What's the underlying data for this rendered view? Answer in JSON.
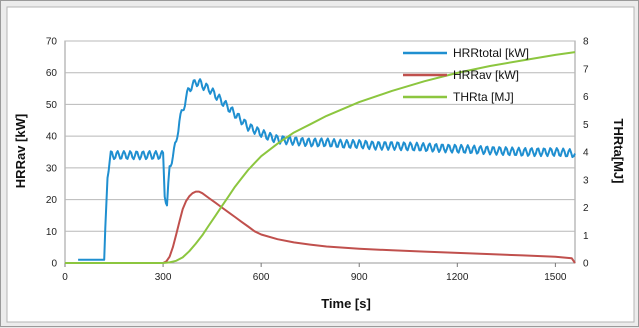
{
  "chart_data": {
    "type": "line",
    "title": "",
    "xlabel": "Time [s]",
    "ylabel_left": "HRRav [kW]",
    "ylabel_right": "THRta[MJ]",
    "xlim": [
      0,
      1560
    ],
    "ylim_left": [
      0,
      70
    ],
    "ylim_right": [
      0,
      8
    ],
    "x_ticks": [
      "0",
      "300",
      "600",
      "900",
      "1200",
      "1500"
    ],
    "y_left_ticks": [
      "0",
      "10",
      "20",
      "30",
      "40",
      "50",
      "60",
      "70"
    ],
    "y_right_ticks": [
      "0",
      "1",
      "2",
      "3",
      "4",
      "5",
      "6",
      "7",
      "8"
    ],
    "grid": true,
    "legend_position": "top-right",
    "series": [
      {
        "name": "HRRtotal [kW]",
        "axis": "left",
        "color": "#1f8fd0",
        "x": [
          40,
          60,
          80,
          100,
          120,
          130,
          140,
          150,
          180,
          210,
          240,
          270,
          290,
          300,
          305,
          312,
          320,
          330,
          340,
          350,
          360,
          370,
          380,
          390,
          400,
          410,
          420,
          440,
          460,
          480,
          500,
          520,
          540,
          560,
          580,
          600,
          620,
          650,
          700,
          750,
          800,
          850,
          900,
          950,
          1000,
          1100,
          1200,
          1300,
          1400,
          1500,
          1560
        ],
        "y": [
          1,
          1,
          1,
          1,
          1,
          28,
          34,
          34,
          34,
          34,
          34,
          34,
          34,
          34,
          22,
          18,
          30,
          34,
          38,
          45,
          48,
          52,
          55,
          56,
          57,
          57,
          56,
          55,
          53,
          51,
          49,
          47,
          45,
          43,
          42,
          41,
          40,
          39,
          38.5,
          38,
          38,
          37.5,
          37.5,
          37,
          37,
          36.5,
          36,
          35.5,
          35,
          35,
          34.5
        ]
      },
      {
        "name": "HRRav [kW]",
        "axis": "left",
        "color": "#c0504d",
        "x": [
          0,
          100,
          200,
          300,
          310,
          320,
          330,
          340,
          350,
          360,
          370,
          380,
          390,
          400,
          410,
          420,
          440,
          460,
          480,
          500,
          520,
          540,
          560,
          580,
          600,
          650,
          700,
          750,
          800,
          900,
          1000,
          1100,
          1200,
          1300,
          1400,
          1500,
          1550,
          1560
        ],
        "y": [
          0,
          0,
          0,
          0,
          0.5,
          2,
          5,
          9,
          13,
          17,
          19.5,
          21,
          22,
          22.5,
          22.5,
          22,
          20.5,
          19,
          17.5,
          16,
          14.5,
          13,
          11.5,
          10,
          9,
          7.5,
          6.5,
          5.8,
          5.2,
          4.5,
          4,
          3.6,
          3.2,
          2.8,
          2.4,
          2,
          1.5,
          0
        ]
      },
      {
        "name": "THRta [MJ]",
        "axis": "right",
        "color": "#8cc63f",
        "x": [
          0,
          100,
          200,
          300,
          320,
          340,
          360,
          380,
          400,
          420,
          440,
          460,
          480,
          500,
          520,
          540,
          560,
          580,
          600,
          650,
          700,
          750,
          800,
          900,
          1000,
          1100,
          1200,
          1300,
          1400,
          1500,
          1560
        ],
        "y": [
          0,
          0,
          0,
          0,
          0.02,
          0.08,
          0.2,
          0.42,
          0.7,
          1.0,
          1.35,
          1.7,
          2.05,
          2.4,
          2.75,
          3.05,
          3.35,
          3.6,
          3.85,
          4.3,
          4.7,
          5.0,
          5.3,
          5.8,
          6.2,
          6.55,
          6.85,
          7.1,
          7.3,
          7.5,
          7.6
        ]
      }
    ]
  }
}
